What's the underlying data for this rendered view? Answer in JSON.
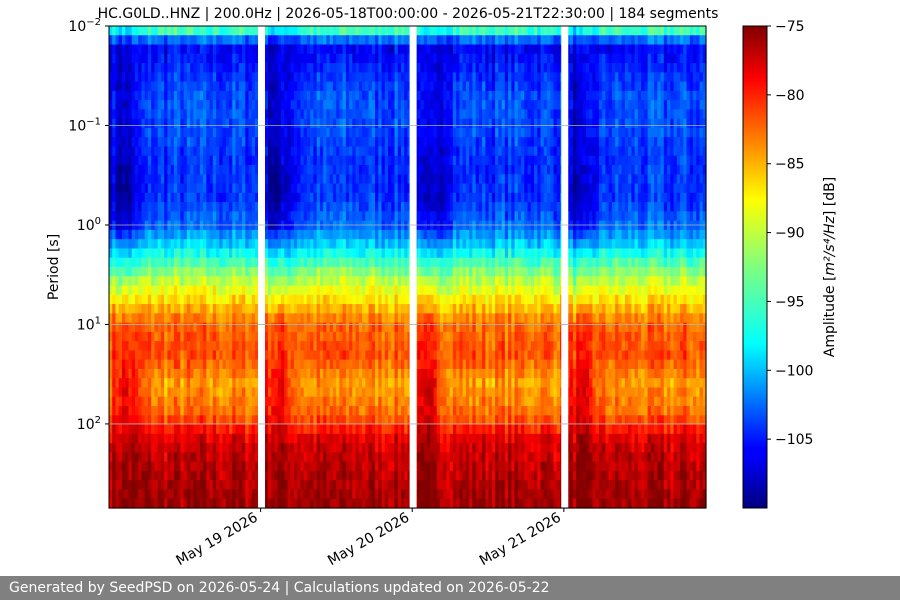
{
  "chart_data": {
    "type": "heatmap",
    "title": "HC.G0LD..HNZ | 200.0Hz | 2026-05-18T00:00:00 - 2026-05-21T22:30:00 | 184 segments",
    "ylabel": "Period [s]",
    "y_scale": "log",
    "y_inverted": true,
    "ylim": [
      0.01,
      700
    ],
    "y_ticks": [
      {
        "value": 0.01,
        "base": "10",
        "exp": "−2"
      },
      {
        "value": 0.1,
        "base": "10",
        "exp": "−1"
      },
      {
        "value": 1,
        "base": "10",
        "exp": "0"
      },
      {
        "value": 10,
        "base": "10",
        "exp": "1"
      },
      {
        "value": 100,
        "base": "10",
        "exp": "2"
      }
    ],
    "x_start": "2026-05-18T00:00:00",
    "x_end": "2026-05-21T22:30:00",
    "x_ticks": [
      {
        "date": "2026-05-19",
        "label": "May 19 2026"
      },
      {
        "date": "2026-05-20",
        "label": "May 20 2026"
      },
      {
        "date": "2026-05-21",
        "label": "May 21 2026"
      }
    ],
    "data_gaps": [
      "2026-05-18",
      "2026-05-19",
      "2026-05-20"
    ],
    "segments": 184,
    "grid": "horizontal",
    "colorbar": {
      "label_text": "Amplitude [",
      "label_math": "m²/s⁴/Hz",
      "label_suffix": "] [dB]",
      "colormap": "jet",
      "vmin": -110,
      "vmax": -75,
      "ticks": [
        {
          "value": -75,
          "label": "−75"
        },
        {
          "value": -80,
          "label": "−80"
        },
        {
          "value": -85,
          "label": "−85"
        },
        {
          "value": -90,
          "label": "−90"
        },
        {
          "value": -95,
          "label": "−95"
        },
        {
          "value": -100,
          "label": "−100"
        },
        {
          "value": -105,
          "label": "−105"
        }
      ]
    },
    "amplitude_profile": [
      {
        "period": 0.01,
        "day_db": -92,
        "night_db": -96
      },
      {
        "period": 0.013,
        "day_db": -99,
        "night_db": -101
      },
      {
        "period": 0.015,
        "day_db": -106,
        "night_db": -107
      },
      {
        "period": 0.05,
        "day_db": -103,
        "night_db": -107.5
      },
      {
        "period": 0.1,
        "day_db": -103,
        "night_db": -107.5
      },
      {
        "period": 0.2,
        "day_db": -104,
        "night_db": -108
      },
      {
        "period": 0.5,
        "day_db": -104,
        "night_db": -109.5
      },
      {
        "period": 1.0,
        "day_db": -102,
        "night_db": -107
      },
      {
        "period": 1.5,
        "day_db": -99,
        "night_db": -102
      },
      {
        "period": 2.0,
        "day_db": -96,
        "night_db": -98
      },
      {
        "period": 3.0,
        "day_db": -92,
        "night_db": -94
      },
      {
        "period": 5.0,
        "day_db": -88,
        "night_db": -89
      },
      {
        "period": 10,
        "day_db": -83,
        "night_db": -82
      },
      {
        "period": 20,
        "day_db": -82,
        "night_db": -81
      },
      {
        "period": 40,
        "day_db": -85,
        "night_db": -79
      },
      {
        "period": 80,
        "day_db": -83,
        "night_db": -79
      },
      {
        "period": 150,
        "day_db": -78,
        "night_db": -77
      },
      {
        "period": 300,
        "day_db": -77,
        "night_db": -76
      },
      {
        "period": 700,
        "day_db": -76,
        "night_db": -75.5
      }
    ]
  },
  "footer": {
    "text": "Generated by SeedPSD on 2026-05-24 | Calculations updated on 2026-05-22"
  }
}
